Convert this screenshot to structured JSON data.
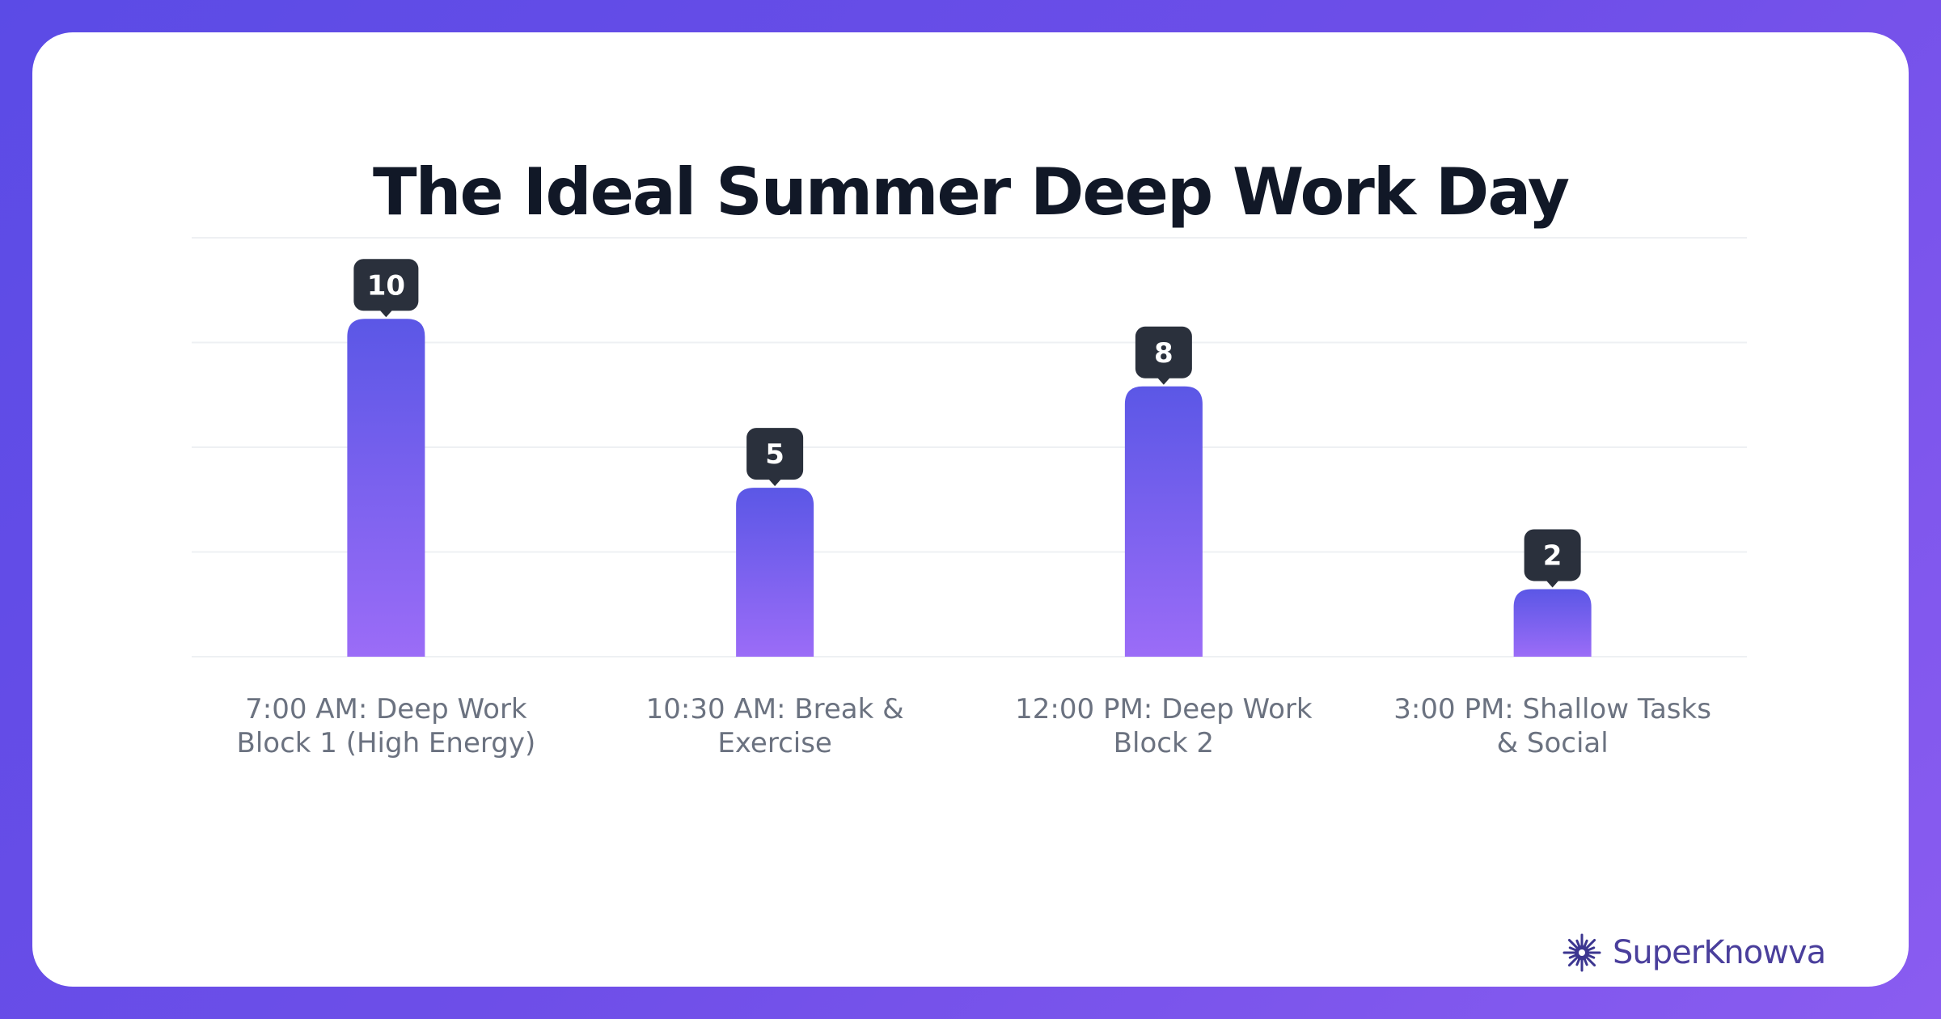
{
  "brand": {
    "name": "SuperKnowva",
    "colors": {
      "background_start": "#5b4be6",
      "background_end": "#8a5cf0",
      "bar_top": "#5b57e6",
      "bar_bottom": "#9b6cf7",
      "label_box": "#2a303c",
      "title": "#111827",
      "axis_label": "#6b7280",
      "logo_text": "#4a3f9c"
    }
  },
  "chart_data": {
    "type": "bar",
    "title": "The Ideal Summer Deep Work Day",
    "categories": [
      "7:00 AM: Deep Work Block 1 (High Energy)",
      "10:30 AM: Break & Exercise",
      "12:00 PM: Deep Work Block 2",
      "3:00 PM: Shallow Tasks & Social"
    ],
    "category_lines": [
      [
        "7:00 AM: Deep Work",
        "Block 1 (High Energy)"
      ],
      [
        "10:30 AM: Break &",
        "Exercise"
      ],
      [
        "12:00 PM: Deep Work",
        "Block 2"
      ],
      [
        "3:00 PM: Shallow Tasks",
        "& Social"
      ]
    ],
    "values": [
      10,
      5,
      8,
      2
    ],
    "data_labels": [
      "10",
      "5",
      "8",
      "2"
    ],
    "xlabel": "",
    "ylabel": "",
    "ylim": [
      0,
      12.4
    ],
    "grid": true,
    "legend": "none"
  }
}
